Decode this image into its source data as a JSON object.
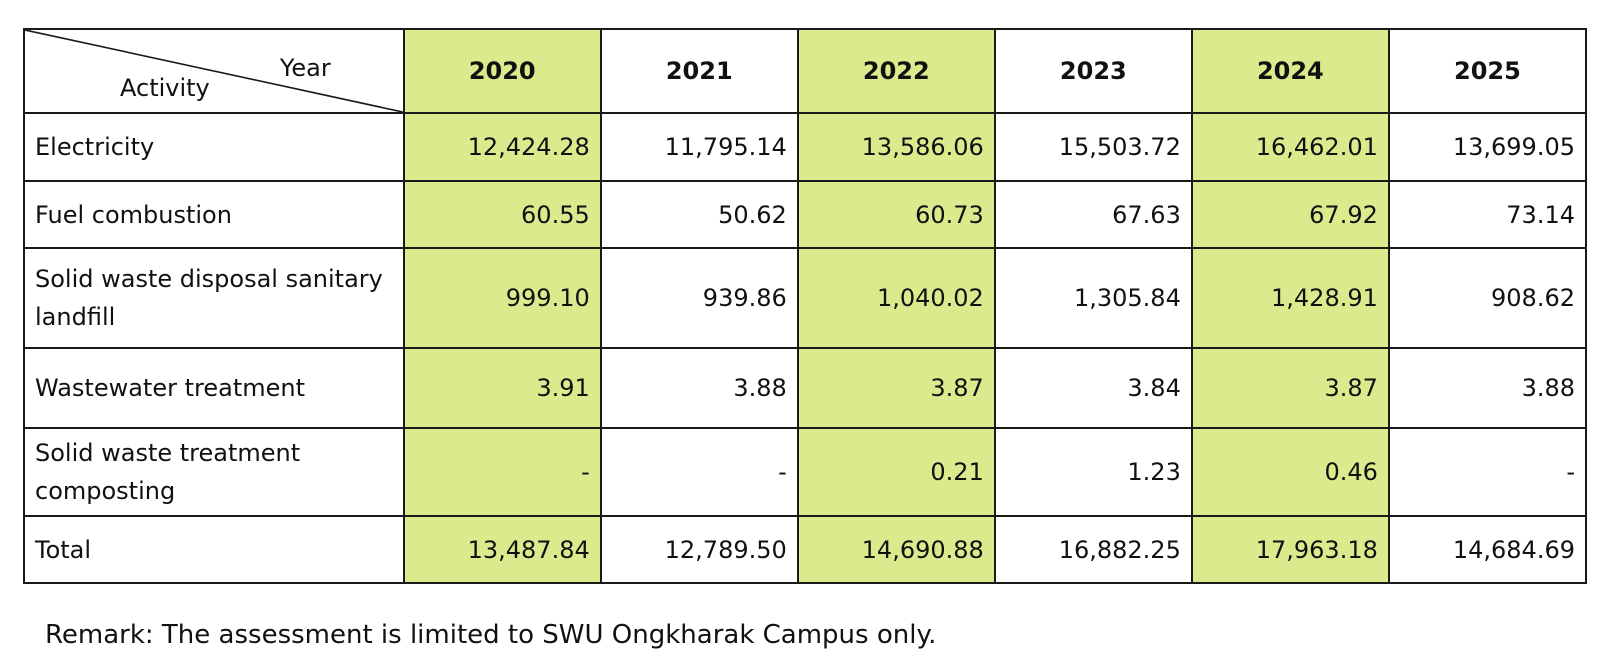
{
  "header": {
    "corner_year": "Year",
    "corner_activity": "Activity",
    "years": [
      "2020",
      "2021",
      "2022",
      "2023",
      "2024",
      "2025"
    ]
  },
  "rows": [
    {
      "activity": "Electricity",
      "values": [
        "12,424.28",
        "11,795.14",
        "13,586.06",
        "15,503.72",
        "16,462.01",
        "13,699.05"
      ]
    },
    {
      "activity": "Fuel combustion",
      "values": [
        "60.55",
        "50.62",
        "60.73",
        "67.63",
        "67.92",
        "73.14"
      ]
    },
    {
      "activity": "Solid waste disposal sanitary landfill",
      "values": [
        "999.10",
        "939.86",
        "1,040.02",
        "1,305.84",
        "1,428.91",
        "908.62"
      ]
    },
    {
      "activity": "Wastewater treatment",
      "values": [
        "3.91",
        "3.88",
        "3.87",
        "3.84",
        "3.87",
        "3.88"
      ]
    },
    {
      "activity": "Solid waste treatment composting",
      "values": [
        "-",
        "-",
        "0.21",
        "1.23",
        "0.46",
        "-"
      ]
    },
    {
      "activity": "Total",
      "values": [
        "13,487.84",
        "12,789.50",
        "14,690.88",
        "16,882.25",
        "17,963.18",
        "14,684.69"
      ]
    }
  ],
  "remark": "Remark: The assessment is limited to SWU Ongkharak Campus only.",
  "colors": {
    "highlight": "#dcea8d",
    "border": "#1a1a1a"
  }
}
